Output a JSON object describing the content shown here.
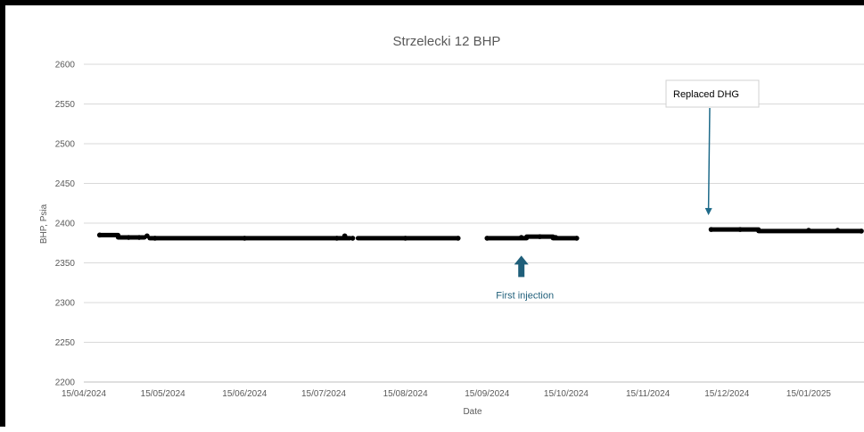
{
  "chart_data": {
    "type": "scatter",
    "title": "Strzelecki 12  BHP",
    "xlabel": "Date",
    "ylabel": "BHP, Psia",
    "ylim": [
      2200,
      2600
    ],
    "yticks": [
      2200,
      2250,
      2300,
      2350,
      2400,
      2450,
      2500,
      2550,
      2600
    ],
    "xrange": [
      "2024-04-15",
      "2025-02-05"
    ],
    "xticks": [
      {
        "date": "2024-04-15",
        "label": "15/04/2024"
      },
      {
        "date": "2024-05-15",
        "label": "15/05/2024"
      },
      {
        "date": "2024-06-15",
        "label": "15/06/2024"
      },
      {
        "date": "2024-07-15",
        "label": "15/07/2024"
      },
      {
        "date": "2024-08-15",
        "label": "15/08/2024"
      },
      {
        "date": "2024-09-15",
        "label": "15/09/2024"
      },
      {
        "date": "2024-10-15",
        "label": "15/10/2024"
      },
      {
        "date": "2024-11-15",
        "label": "15/11/2024"
      },
      {
        "date": "2024-12-15",
        "label": "15/12/2024"
      },
      {
        "date": "2025-01-15",
        "label": "15/01/2025"
      }
    ],
    "grid": "horizontal",
    "marker_color": "#000000",
    "series": [
      {
        "points": [
          {
            "x": "2024-04-21",
            "y": 2385
          },
          {
            "x": "2024-04-28",
            "y": 2384
          },
          {
            "x": "2024-05-02",
            "y": 2382
          },
          {
            "x": "2024-05-06",
            "y": 2382
          },
          {
            "x": "2024-05-09",
            "y": 2384
          },
          {
            "x": "2024-05-12",
            "y": 2381
          },
          {
            "x": "2024-06-15",
            "y": 2381
          },
          {
            "x": "2024-07-20",
            "y": 2381
          },
          {
            "x": "2024-07-23",
            "y": 2384
          },
          {
            "x": "2024-07-26",
            "y": 2381
          },
          {
            "x": "2024-08-15",
            "y": 2381
          },
          {
            "x": "2024-09-04",
            "y": 2381
          },
          {
            "x": "2024-09-15",
            "y": 2381
          },
          {
            "x": "2024-09-28",
            "y": 2382
          },
          {
            "x": "2024-10-05",
            "y": 2383
          },
          {
            "x": "2024-10-11",
            "y": 2382
          },
          {
            "x": "2024-10-19",
            "y": 2381
          },
          {
            "x": "2024-12-09",
            "y": 2392
          },
          {
            "x": "2024-12-20",
            "y": 2392
          },
          {
            "x": "2024-12-27",
            "y": 2391
          },
          {
            "x": "2025-01-15",
            "y": 2391
          },
          {
            "x": "2025-01-26",
            "y": 2391
          },
          {
            "x": "2025-02-04",
            "y": 2390
          }
        ]
      }
    ],
    "segments": [
      {
        "x_start": "2024-04-21",
        "x_end": "2024-04-28",
        "y": 2385
      },
      {
        "x_start": "2024-04-28",
        "x_end": "2024-05-08",
        "y": 2382
      },
      {
        "x_start": "2024-05-10",
        "x_end": "2024-07-25",
        "y": 2381
      },
      {
        "x_start": "2024-07-28",
        "x_end": "2024-09-04",
        "y": 2381
      },
      {
        "x_start": "2024-09-15",
        "x_end": "2024-09-30",
        "y": 2381
      },
      {
        "x_start": "2024-09-30",
        "x_end": "2024-10-10",
        "y": 2383
      },
      {
        "x_start": "2024-10-10",
        "x_end": "2024-10-19",
        "y": 2381
      },
      {
        "x_start": "2024-12-09",
        "x_end": "2024-12-27",
        "y": 2392
      },
      {
        "x_start": "2024-12-27",
        "x_end": "2025-02-04",
        "y": 2390
      }
    ],
    "annotations": [
      {
        "id": "replaced-dhg",
        "text": "Replaced DHG",
        "style": "boxed-callout",
        "target": {
          "x": "2024-12-08",
          "y": 2410
        },
        "color": "#1f6b8a"
      },
      {
        "id": "first-injection",
        "text": "First injection",
        "style": "up-arrow",
        "target": {
          "x": "2024-09-28",
          "y": 2367
        },
        "color": "#1f5f7a"
      }
    ]
  }
}
